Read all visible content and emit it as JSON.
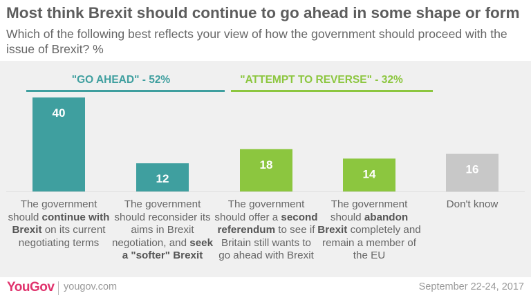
{
  "title": "Most think Brexit should continue to go ahead in some shape or form",
  "subtitle": "Which of the following best reflects your view of how the government should proceed with the issue of Brexit? %",
  "groups": [
    {
      "label": "\"GO AHEAD\" - 52%",
      "color": "#3f9f9f"
    },
    {
      "label": "\"ATTEMPT TO REVERSE\" - 32%",
      "color": "#8cc63f"
    }
  ],
  "colors": {
    "teal": "#3f9f9f",
    "green": "#8cc63f",
    "grey": "#c8c8c8"
  },
  "chart_data": {
    "type": "bar",
    "title": "Most think Brexit should continue to go ahead in some shape or form",
    "categories": [
      "The government should continue with Brexit on its current negotiating terms",
      "The government should reconsider its aims in Brexit negotiation, and seek a \"softer\" Brexit",
      "The government should offer a second referendum to see if Britain still wants to go ahead with Brexit",
      "The government should abandon Brexit completely and remain a member of the EU",
      "Don't know"
    ],
    "values": [
      40,
      12,
      18,
      14,
      16
    ],
    "bar_colors": [
      "#3f9f9f",
      "#3f9f9f",
      "#8cc63f",
      "#8cc63f",
      "#c8c8c8"
    ],
    "xlabel": "",
    "ylabel": "",
    "ylim": [
      0,
      40
    ],
    "grid": false
  },
  "category_labels": [
    [
      {
        "t": "The government should "
      },
      {
        "t": "continue with Brexit",
        "b": true
      },
      {
        "t": " on its current negotiating terms"
      }
    ],
    [
      {
        "t": "The government should reconsider its aims in Brexit negotiation, and "
      },
      {
        "t": "seek a \"softer\" Brexit",
        "b": true
      }
    ],
    [
      {
        "t": "The government should offer a "
      },
      {
        "t": "second referendum",
        "b": true
      },
      {
        "t": " to see if Britain still wants to go ahead with Brexit"
      }
    ],
    [
      {
        "t": "The government should "
      },
      {
        "t": "abandon Brexit",
        "b": true
      },
      {
        "t": " completely and remain a member of the EU"
      }
    ],
    [
      {
        "t": "Don't know"
      }
    ]
  ],
  "footer": {
    "logo": "YouGov",
    "site": "yougov.com",
    "date": "September 22-24, 2017"
  }
}
